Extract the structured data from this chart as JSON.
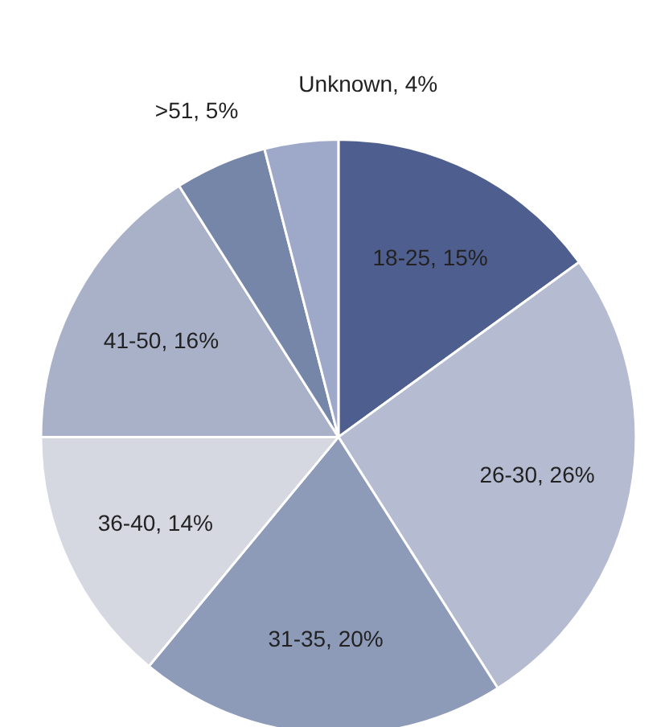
{
  "chart_data": {
    "type": "pie",
    "categories": [
      "18-25",
      "26-30",
      "31-35",
      "36-40",
      "41-50",
      ">51",
      "Unknown"
    ],
    "values": [
      15,
      26,
      20,
      14,
      16,
      5,
      4
    ],
    "value_labels": [
      "15%",
      "26%",
      "20%",
      "14%",
      "16%",
      "5%",
      "4%"
    ],
    "colors": [
      "#4e5f8f",
      "#b5bbd1",
      "#8d9bb9",
      "#d5d7e1",
      "#a9b1c9",
      "#7686a9",
      "#9ea9c9"
    ]
  }
}
